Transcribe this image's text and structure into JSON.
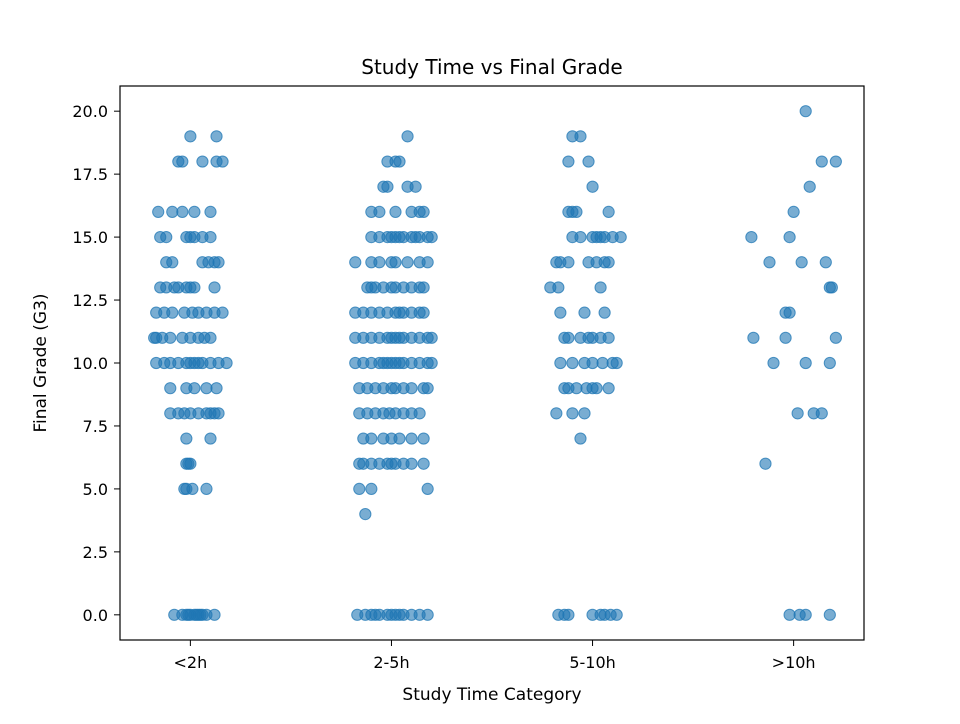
{
  "chart_data": {
    "type": "scatter",
    "title": "Study Time vs Final Grade",
    "xlabel": "Study Time Category",
    "ylabel": "Final Grade (G3)",
    "categories": [
      "<2h",
      "2-5h",
      "5-10h",
      ">10h"
    ],
    "ylim": [
      -1,
      21
    ],
    "yticks": [
      "0.0",
      "2.5",
      "5.0",
      "7.5",
      "10.0",
      "12.5",
      "15.0",
      "17.5",
      "20.0"
    ],
    "grid": false,
    "legend": "none",
    "marker_color": "#1f77b4",
    "marker_alpha": 0.6,
    "series": [
      {
        "category": "<2h",
        "points": [
          [
            -0.08,
            0
          ],
          [
            -0.04,
            0
          ],
          [
            -0.02,
            0
          ],
          [
            0.0,
            0
          ],
          [
            0.02,
            0
          ],
          [
            0.04,
            0
          ],
          [
            0.05,
            0
          ],
          [
            0.06,
            0
          ],
          [
            0.08,
            0
          ],
          [
            0.12,
            0
          ],
          [
            0.03,
            0
          ],
          [
            -0.01,
            0
          ],
          [
            0.01,
            5
          ],
          [
            -0.03,
            5
          ],
          [
            -0.02,
            5
          ],
          [
            0.08,
            5
          ],
          [
            -0.02,
            6
          ],
          [
            0.0,
            6
          ],
          [
            -0.01,
            6
          ],
          [
            -0.02,
            7
          ],
          [
            0.1,
            7
          ],
          [
            -0.1,
            8
          ],
          [
            -0.06,
            8
          ],
          [
            -0.03,
            8
          ],
          [
            0.0,
            8
          ],
          [
            0.04,
            8
          ],
          [
            0.08,
            8
          ],
          [
            0.12,
            8
          ],
          [
            0.14,
            8
          ],
          [
            0.1,
            8
          ],
          [
            -0.1,
            9
          ],
          [
            -0.02,
            9
          ],
          [
            0.02,
            9
          ],
          [
            0.08,
            9
          ],
          [
            0.13,
            9
          ],
          [
            -0.17,
            10
          ],
          [
            -0.13,
            10
          ],
          [
            -0.1,
            10
          ],
          [
            -0.06,
            10
          ],
          [
            -0.02,
            10
          ],
          [
            0.0,
            10
          ],
          [
            0.02,
            10
          ],
          [
            0.06,
            10
          ],
          [
            0.1,
            10
          ],
          [
            0.14,
            10
          ],
          [
            0.18,
            10
          ],
          [
            0.04,
            10
          ],
          [
            -0.18,
            11
          ],
          [
            -0.14,
            11
          ],
          [
            -0.1,
            11
          ],
          [
            -0.04,
            11
          ],
          [
            0.0,
            11
          ],
          [
            0.04,
            11
          ],
          [
            0.07,
            11
          ],
          [
            0.1,
            11
          ],
          [
            -0.17,
            11
          ],
          [
            -0.17,
            12
          ],
          [
            -0.13,
            12
          ],
          [
            -0.09,
            12
          ],
          [
            -0.03,
            12
          ],
          [
            0.01,
            12
          ],
          [
            0.04,
            12
          ],
          [
            0.08,
            12
          ],
          [
            0.12,
            12
          ],
          [
            0.16,
            12
          ],
          [
            -0.15,
            13
          ],
          [
            -0.12,
            13
          ],
          [
            -0.06,
            13
          ],
          [
            -0.02,
            13
          ],
          [
            0.0,
            13
          ],
          [
            0.02,
            13
          ],
          [
            0.12,
            13
          ],
          [
            -0.08,
            13
          ],
          [
            -0.12,
            14
          ],
          [
            -0.09,
            14
          ],
          [
            0.06,
            14
          ],
          [
            0.09,
            14
          ],
          [
            0.12,
            14
          ],
          [
            0.14,
            14
          ],
          [
            -0.15,
            15
          ],
          [
            -0.12,
            15
          ],
          [
            -0.02,
            15
          ],
          [
            0.02,
            15
          ],
          [
            0.06,
            15
          ],
          [
            0.1,
            15
          ],
          [
            0.0,
            15
          ],
          [
            -0.16,
            16
          ],
          [
            -0.09,
            16
          ],
          [
            -0.04,
            16
          ],
          [
            0.02,
            16
          ],
          [
            0.1,
            16
          ],
          [
            -0.06,
            18
          ],
          [
            -0.04,
            18
          ],
          [
            0.06,
            18
          ],
          [
            0.13,
            18
          ],
          [
            0.16,
            18
          ],
          [
            0.0,
            19
          ],
          [
            0.13,
            19
          ]
        ]
      },
      {
        "category": "2-5h",
        "points": [
          [
            -0.17,
            0
          ],
          [
            -0.13,
            0
          ],
          [
            -0.1,
            0
          ],
          [
            -0.06,
            0
          ],
          [
            -0.02,
            0
          ],
          [
            0.0,
            0
          ],
          [
            0.02,
            0
          ],
          [
            0.06,
            0
          ],
          [
            0.1,
            0
          ],
          [
            0.14,
            0
          ],
          [
            0.18,
            0
          ],
          [
            -0.08,
            0
          ],
          [
            0.04,
            0
          ],
          [
            -0.13,
            4
          ],
          [
            -0.16,
            5
          ],
          [
            -0.1,
            5
          ],
          [
            0.18,
            5
          ],
          [
            -0.16,
            6
          ],
          [
            -0.14,
            6
          ],
          [
            -0.1,
            6
          ],
          [
            -0.06,
            6
          ],
          [
            -0.02,
            6
          ],
          [
            0.0,
            6
          ],
          [
            0.02,
            6
          ],
          [
            0.06,
            6
          ],
          [
            0.1,
            6
          ],
          [
            0.16,
            6
          ],
          [
            -0.14,
            7
          ],
          [
            -0.1,
            7
          ],
          [
            -0.04,
            7
          ],
          [
            0.0,
            7
          ],
          [
            0.04,
            7
          ],
          [
            0.1,
            7
          ],
          [
            0.16,
            7
          ],
          [
            -0.16,
            8
          ],
          [
            -0.12,
            8
          ],
          [
            -0.08,
            8
          ],
          [
            -0.04,
            8
          ],
          [
            -0.01,
            8
          ],
          [
            0.02,
            8
          ],
          [
            0.06,
            8
          ],
          [
            0.1,
            8
          ],
          [
            0.14,
            8
          ],
          [
            -0.16,
            9
          ],
          [
            -0.12,
            9
          ],
          [
            -0.08,
            9
          ],
          [
            -0.04,
            9
          ],
          [
            0.0,
            9
          ],
          [
            0.02,
            9
          ],
          [
            0.06,
            9
          ],
          [
            0.1,
            9
          ],
          [
            0.16,
            9
          ],
          [
            0.18,
            9
          ],
          [
            -0.18,
            10
          ],
          [
            -0.14,
            10
          ],
          [
            -0.1,
            10
          ],
          [
            -0.06,
            10
          ],
          [
            -0.02,
            10
          ],
          [
            0.0,
            10
          ],
          [
            0.02,
            10
          ],
          [
            0.06,
            10
          ],
          [
            0.1,
            10
          ],
          [
            0.14,
            10
          ],
          [
            0.18,
            10
          ],
          [
            0.2,
            10
          ],
          [
            -0.04,
            10
          ],
          [
            0.04,
            10
          ],
          [
            -0.18,
            11
          ],
          [
            -0.14,
            11
          ],
          [
            -0.1,
            11
          ],
          [
            -0.06,
            11
          ],
          [
            -0.02,
            11
          ],
          [
            0.0,
            11
          ],
          [
            0.02,
            11
          ],
          [
            0.06,
            11
          ],
          [
            0.1,
            11
          ],
          [
            0.14,
            11
          ],
          [
            0.18,
            11
          ],
          [
            0.2,
            11
          ],
          [
            0.04,
            11
          ],
          [
            -0.18,
            12
          ],
          [
            -0.14,
            12
          ],
          [
            -0.1,
            12
          ],
          [
            -0.06,
            12
          ],
          [
            -0.02,
            12
          ],
          [
            0.02,
            12
          ],
          [
            0.06,
            12
          ],
          [
            0.1,
            12
          ],
          [
            0.14,
            12
          ],
          [
            0.16,
            12
          ],
          [
            0.04,
            12
          ],
          [
            -0.12,
            13
          ],
          [
            -0.08,
            13
          ],
          [
            -0.04,
            13
          ],
          [
            0.0,
            13
          ],
          [
            0.02,
            13
          ],
          [
            0.06,
            13
          ],
          [
            0.1,
            13
          ],
          [
            0.14,
            13
          ],
          [
            0.16,
            13
          ],
          [
            -0.1,
            13
          ],
          [
            -0.18,
            14
          ],
          [
            -0.1,
            14
          ],
          [
            -0.06,
            14
          ],
          [
            0.0,
            14
          ],
          [
            0.02,
            14
          ],
          [
            0.08,
            14
          ],
          [
            0.14,
            14
          ],
          [
            0.18,
            14
          ],
          [
            -0.1,
            15
          ],
          [
            -0.06,
            15
          ],
          [
            -0.02,
            15
          ],
          [
            0.0,
            15
          ],
          [
            0.02,
            15
          ],
          [
            0.06,
            15
          ],
          [
            0.1,
            15
          ],
          [
            0.14,
            15
          ],
          [
            0.18,
            15
          ],
          [
            0.2,
            15
          ],
          [
            0.04,
            15
          ],
          [
            0.12,
            15
          ],
          [
            -0.1,
            16
          ],
          [
            -0.06,
            16
          ],
          [
            0.02,
            16
          ],
          [
            0.1,
            16
          ],
          [
            0.14,
            16
          ],
          [
            0.16,
            16
          ],
          [
            -0.04,
            17
          ],
          [
            -0.02,
            17
          ],
          [
            0.08,
            17
          ],
          [
            0.12,
            17
          ],
          [
            -0.02,
            18
          ],
          [
            0.02,
            18
          ],
          [
            0.04,
            18
          ],
          [
            0.08,
            19
          ]
        ]
      },
      {
        "category": "5-10h",
        "points": [
          [
            -0.17,
            0
          ],
          [
            -0.14,
            0
          ],
          [
            -0.12,
            0
          ],
          [
            0.0,
            0
          ],
          [
            0.04,
            0
          ],
          [
            0.06,
            0
          ],
          [
            0.09,
            0
          ],
          [
            0.12,
            0
          ],
          [
            -0.06,
            7
          ],
          [
            -0.18,
            8
          ],
          [
            -0.1,
            8
          ],
          [
            -0.04,
            8
          ],
          [
            -0.14,
            9
          ],
          [
            -0.12,
            9
          ],
          [
            -0.08,
            9
          ],
          [
            -0.03,
            9
          ],
          [
            0.0,
            9
          ],
          [
            0.02,
            9
          ],
          [
            0.08,
            9
          ],
          [
            -0.16,
            10
          ],
          [
            -0.1,
            10
          ],
          [
            -0.04,
            10
          ],
          [
            0.0,
            10
          ],
          [
            0.05,
            10
          ],
          [
            0.1,
            10
          ],
          [
            0.12,
            10
          ],
          [
            -0.14,
            11
          ],
          [
            -0.12,
            11
          ],
          [
            -0.06,
            11
          ],
          [
            -0.02,
            11
          ],
          [
            0.0,
            11
          ],
          [
            0.04,
            11
          ],
          [
            0.08,
            11
          ],
          [
            -0.16,
            12
          ],
          [
            -0.04,
            12
          ],
          [
            0.06,
            12
          ],
          [
            -0.21,
            13
          ],
          [
            -0.17,
            13
          ],
          [
            0.04,
            13
          ],
          [
            -0.18,
            14
          ],
          [
            -0.16,
            14
          ],
          [
            -0.12,
            14
          ],
          [
            -0.02,
            14
          ],
          [
            0.02,
            14
          ],
          [
            0.06,
            14
          ],
          [
            0.08,
            14
          ],
          [
            -0.1,
            15
          ],
          [
            -0.06,
            15
          ],
          [
            0.0,
            15
          ],
          [
            0.04,
            15
          ],
          [
            0.06,
            15
          ],
          [
            0.1,
            15
          ],
          [
            0.14,
            15
          ],
          [
            0.02,
            15
          ],
          [
            -0.12,
            16
          ],
          [
            -0.1,
            16
          ],
          [
            -0.08,
            16
          ],
          [
            0.08,
            16
          ],
          [
            0.0,
            17
          ],
          [
            -0.12,
            18
          ],
          [
            -0.02,
            18
          ],
          [
            -0.1,
            19
          ],
          [
            -0.06,
            19
          ]
        ]
      },
      {
        "category": ">10h",
        "points": [
          [
            -0.02,
            0
          ],
          [
            0.03,
            0
          ],
          [
            0.06,
            0
          ],
          [
            0.18,
            0
          ],
          [
            -0.14,
            6
          ],
          [
            0.02,
            8
          ],
          [
            0.1,
            8
          ],
          [
            0.14,
            8
          ],
          [
            -0.1,
            10
          ],
          [
            0.06,
            10
          ],
          [
            0.18,
            10
          ],
          [
            -0.2,
            11
          ],
          [
            -0.04,
            11
          ],
          [
            0.21,
            11
          ],
          [
            -0.04,
            12
          ],
          [
            -0.02,
            12
          ],
          [
            0.18,
            13
          ],
          [
            0.19,
            13
          ],
          [
            -0.12,
            14
          ],
          [
            0.04,
            14
          ],
          [
            0.16,
            14
          ],
          [
            -0.21,
            15
          ],
          [
            -0.02,
            15
          ],
          [
            0.0,
            16
          ],
          [
            0.08,
            17
          ],
          [
            0.14,
            18
          ],
          [
            0.21,
            18
          ],
          [
            0.06,
            20
          ]
        ]
      }
    ]
  }
}
